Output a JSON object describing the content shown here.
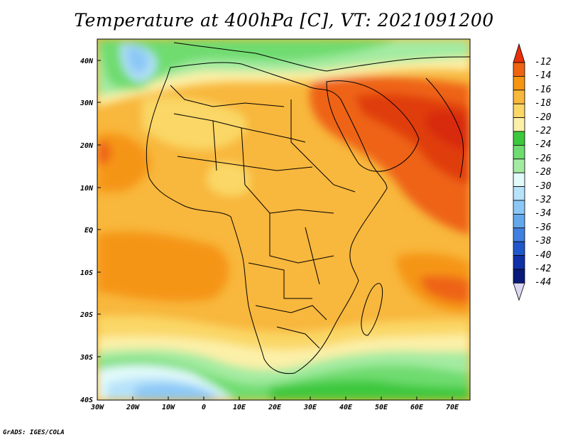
{
  "title": "Temperature at 400hPa [C], VT: 2021091200",
  "footer": "GrADS: IGES/COLA",
  "lat_labels": [
    "40N",
    "30N",
    "20N",
    "10N",
    "EQ",
    "10S",
    "20S",
    "30S",
    "40S"
  ],
  "lon_labels": [
    "30W",
    "20W",
    "10W",
    "0",
    "10E",
    "20E",
    "30E",
    "40E",
    "50E",
    "60E",
    "70E"
  ],
  "colorbar": {
    "labels": [
      "-12",
      "-14",
      "-16",
      "-18",
      "-20",
      "-22",
      "-24",
      "-26",
      "-28",
      "-30",
      "-32",
      "-34",
      "-36",
      "-38",
      "-40",
      "-42",
      "-44"
    ],
    "colors": [
      "#e03c10",
      "#ee6412",
      "#f59512",
      "#f8b73d",
      "#fad766",
      "#fcf0a8",
      "#3cc83c",
      "#6fdc6f",
      "#a4eba2",
      "#e2fafa",
      "#b6e2fa",
      "#8cc8f6",
      "#64a8ec",
      "#4080e0",
      "#2058cc",
      "#1030a8",
      "#0a1a7a"
    ],
    "top_color": "#e8300c",
    "bottom_color": "#dcd8f4"
  }
}
